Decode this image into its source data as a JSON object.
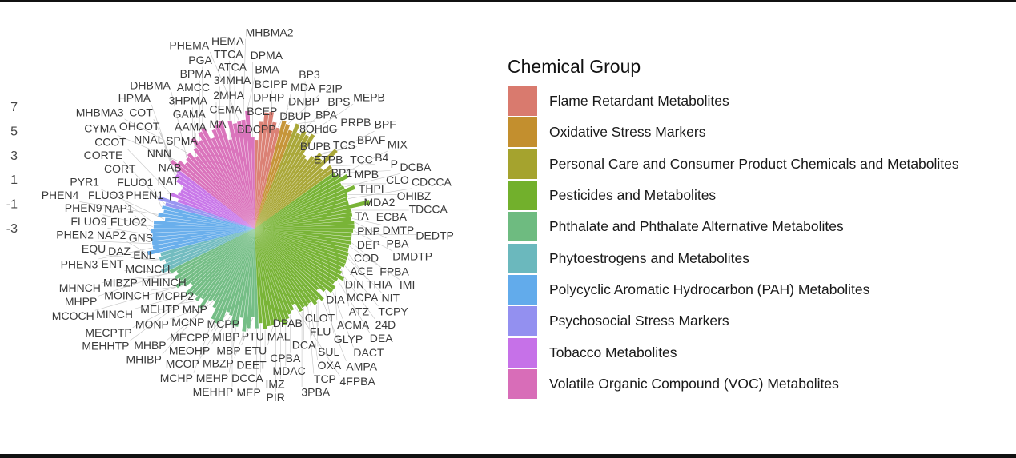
{
  "chart_data": {
    "type": "bar",
    "subtype": "circular",
    "title": "",
    "legend_title": "Chemical Group",
    "legend_position": "right",
    "yaxis": {
      "ticks": [
        7,
        5,
        3,
        1,
        -1,
        -3
      ],
      "range": [
        -3,
        7.5
      ]
    },
    "groups": [
      {
        "name": "Flame Retardant Metabolites",
        "color": "#D97A6E",
        "bars": [
          [
            "BDCPP",
            4.3
          ],
          [
            "BCEP",
            5.8
          ],
          [
            "DPHP",
            6.6
          ],
          [
            "BCIPP",
            6.7
          ],
          [
            "DBUP",
            5.9
          ],
          [
            "DNBP",
            5.5
          ]
        ]
      },
      {
        "name": "Oxidative Stress Markers",
        "color": "#C38F2E",
        "bars": [
          [
            "MDA",
            6.2
          ],
          [
            "F2IP",
            6.0
          ],
          [
            "8OHdG",
            5.6
          ]
        ]
      },
      {
        "name": "Personal Care and Consumer Product Chemicals and Metabolites",
        "color": "#A5A32E",
        "bars": [
          [
            "BPA",
            6.3
          ],
          [
            "BPS",
            5.6
          ],
          [
            "BP3",
            6.0
          ],
          [
            "MEPB",
            5.8
          ],
          [
            "PRPB",
            6.1
          ],
          [
            "BUPB",
            4.3
          ],
          [
            "ETPB",
            4.1
          ],
          [
            "TCS",
            4.6
          ],
          [
            "BPAF",
            5.2
          ],
          [
            "BPF",
            4.9
          ],
          [
            "TCC",
            6.3
          ],
          [
            "BP1",
            4.4
          ],
          [
            "B4",
            5.1
          ],
          [
            "MPB",
            5.0
          ]
        ]
      },
      {
        "name": "Pesticides and Metabolites",
        "color": "#72B02C",
        "bars": [
          [
            "P",
            5.0
          ],
          [
            "MIX",
            5.2
          ],
          [
            "THPI",
            5.8
          ],
          [
            "CLO",
            5.0
          ],
          [
            "DCBA",
            5.1
          ],
          [
            "MDA2",
            5.9
          ],
          [
            "OHIBZ",
            5.1
          ],
          [
            "CDCCA",
            5.0
          ],
          [
            "TA",
            5.0
          ],
          [
            "ECBA",
            6.7
          ],
          [
            "TDCCA",
            5.1
          ],
          [
            "PNP",
            5.1
          ],
          [
            "DMTP",
            5.0
          ],
          [
            "PBA",
            5.2
          ],
          [
            "DEP",
            5.2
          ],
          [
            "DMDTP",
            5.1
          ],
          [
            "DEDTP",
            5.0
          ],
          [
            "COD",
            5.0
          ],
          [
            "FPBA",
            5.0
          ],
          [
            "IMI",
            4.9
          ],
          [
            "ACE",
            4.9
          ],
          [
            "THIA",
            5.0
          ],
          [
            "NIT",
            5.0
          ],
          [
            "DIN",
            5.0
          ],
          [
            "TCPY",
            5.0
          ],
          [
            "MCPA",
            4.8
          ],
          [
            "24D",
            5.0
          ],
          [
            "ATZ",
            5.4
          ],
          [
            "DEA",
            5.0
          ],
          [
            "DIA",
            4.9
          ],
          [
            "ACMA",
            5.2
          ],
          [
            "DACT",
            5.2
          ],
          [
            "GLYP",
            4.7
          ],
          [
            "AMPA",
            4.2
          ],
          [
            "CLOT",
            5.1
          ],
          [
            "FLU",
            4.8
          ],
          [
            "SUL",
            5.0
          ],
          [
            "OXA",
            4.6
          ],
          [
            "TCP",
            4.7
          ],
          [
            "DCA",
            4.6
          ],
          [
            "3PBA",
            4.8
          ],
          [
            "4FPBA",
            4.0
          ],
          [
            "DPAB",
            4.4
          ],
          [
            "CPBA",
            4.6
          ],
          [
            "MAL",
            4.9
          ],
          [
            "MDAC",
            5.3
          ],
          [
            "IMZ",
            5.0
          ],
          [
            "PIR",
            4.7
          ],
          [
            "ETU",
            5.1
          ],
          [
            "PTU",
            5.1
          ],
          [
            "DEET",
            5.3
          ],
          [
            "DCCA",
            4.8
          ]
        ]
      },
      {
        "name": "Phthalate and Phthalate Alternative Metabolites",
        "color": "#6EBB80",
        "bars": [
          [
            "MEP",
            5.2
          ],
          [
            "MBP",
            4.3
          ],
          [
            "MIBP",
            5.2
          ],
          [
            "MBZP",
            5.5
          ],
          [
            "MCPP",
            4.4
          ],
          [
            "MEHP",
            5.2
          ],
          [
            "MEHHP",
            5.1
          ],
          [
            "MEOHP",
            4.4
          ],
          [
            "MECPP",
            4.2
          ],
          [
            "MCOP",
            5.1
          ],
          [
            "MCNP",
            5.4
          ],
          [
            "MCHP",
            5.2
          ],
          [
            "MNP",
            4.3
          ],
          [
            "MHBP",
            3.8
          ],
          [
            "MHIBP",
            4.0
          ],
          [
            "MONP",
            4.9
          ],
          [
            "MCPP2",
            4.2
          ],
          [
            "MEHTP",
            4.6
          ],
          [
            "MECPTP",
            4.3
          ],
          [
            "MEHHTP",
            4.6
          ],
          [
            "MINCH",
            4.8
          ],
          [
            "MHINCH",
            3.9
          ],
          [
            "MOINCH",
            4.4
          ],
          [
            "MCOCH",
            5.0
          ],
          [
            "MCINCH",
            4.4
          ],
          [
            "MIBZP",
            4.7
          ],
          [
            "MHNCH",
            4.3
          ],
          [
            "MHPP",
            4.8
          ]
        ]
      },
      {
        "name": "Phytoestrogens and Metabolites",
        "color": "#6BB8BD",
        "bars": [
          [
            "ENT",
            5.4
          ],
          [
            "ENL",
            5.1
          ],
          [
            "DAZ",
            4.8
          ],
          [
            "EQU",
            5.2
          ],
          [
            "GNS",
            5.0
          ]
        ]
      },
      {
        "name": "Polycyclic Aromatic Hydrocarbon (PAH) Metabolites",
        "color": "#62ABEB",
        "bars": [
          [
            "NAP2",
            6.0
          ],
          [
            "PHEN3",
            5.5
          ],
          [
            "PHEN2",
            5.5
          ],
          [
            "FLUO2",
            5.5
          ],
          [
            "FLUO9",
            5.4
          ],
          [
            "NAP1",
            5.5
          ],
          [
            "PHEN9",
            5.3
          ],
          [
            "FLUO3",
            5.3
          ],
          [
            "PYR1",
            4.4
          ],
          [
            "PHEN4",
            5.0
          ],
          [
            "PHEN1",
            4.6
          ],
          [
            "FLUO1",
            4.8
          ]
        ]
      },
      {
        "name": "Psychosocial Stress Markers",
        "color": "#9390F0",
        "bars": [
          [
            "CORT",
            4.6
          ],
          [
            "CORTE",
            5.3
          ]
        ]
      },
      {
        "name": "Tobacco Metabolites",
        "color": "#C671E8",
        "bars": [
          [
            "T",
            3.7
          ],
          [
            "CCOT",
            4.4
          ],
          [
            "NAT",
            3.9
          ],
          [
            "NAB",
            3.8
          ],
          [
            "NNN",
            3.8
          ],
          [
            "NNAL",
            4.5
          ],
          [
            "OHCOT",
            4.8
          ],
          [
            "COT",
            4.9
          ]
        ]
      },
      {
        "name": "Volatile Organic Compound (VOC) Metabolites",
        "color": "#D86DB8",
        "bars": [
          [
            "HPMA",
            5.8
          ],
          [
            "CYMA",
            5.3
          ],
          [
            "SPMA",
            4.8
          ],
          [
            "DHBMA",
            5.0
          ],
          [
            "MHBMA3",
            5.2
          ],
          [
            "AAMA",
            4.6
          ],
          [
            "GAMA",
            5.2
          ],
          [
            "3HPMA",
            6.0
          ],
          [
            "AMCC",
            5.5
          ],
          [
            "BPMA",
            6.1
          ],
          [
            "PGA",
            6.3
          ],
          [
            "MA",
            5.2
          ],
          [
            "CEMA",
            5.8
          ],
          [
            "2MHA",
            6.1
          ],
          [
            "34MHA",
            6.3
          ],
          [
            "ATCA",
            4.6
          ],
          [
            "TTCA",
            6.1
          ],
          [
            "HEMA",
            5.8
          ],
          [
            "PHEMA",
            5.9
          ],
          [
            "MHBMA2",
            6.0
          ],
          [
            "BMA",
            6.7
          ],
          [
            "DPMA",
            4.5
          ]
        ]
      }
    ]
  }
}
